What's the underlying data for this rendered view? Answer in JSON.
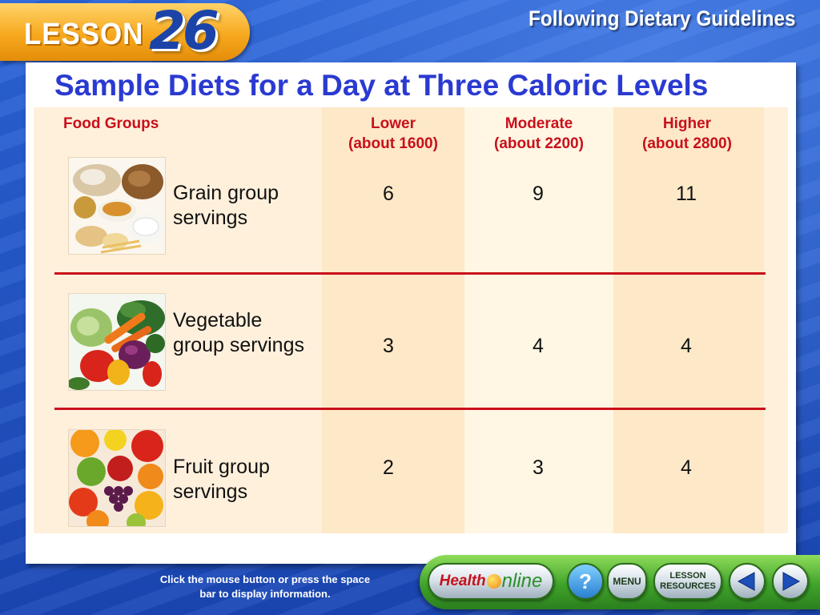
{
  "header": {
    "lesson_word": "LESSON",
    "lesson_number": "26",
    "chapter_title": "Following Dietary Guidelines"
  },
  "slide": {
    "title": "Sample Diets for a Day at Three Caloric Levels"
  },
  "table": {
    "columns": {
      "food_groups": "Food Groups",
      "lower_title": "Lower",
      "lower_sub": "(about 1600)",
      "moderate_title": "Moderate",
      "moderate_sub": "(about 2200)",
      "higher_title": "Higher",
      "higher_sub": "(about 2800)"
    },
    "rows": [
      {
        "label": "Grain group servings",
        "image_icon": "grain-foods-image",
        "lower": "6",
        "moderate": "9",
        "higher": "11"
      },
      {
        "label": "Vegetable group servings",
        "image_icon": "vegetables-image",
        "lower": "3",
        "moderate": "4",
        "higher": "4"
      },
      {
        "label": "Fruit group servings",
        "image_icon": "fruits-image",
        "lower": "2",
        "moderate": "3",
        "higher": "4"
      }
    ]
  },
  "colors": {
    "title_blue": "#2a3ad1",
    "header_red": "#c8101a",
    "lesson_orange": "#f7a91e",
    "background_blue": "#1f55c9",
    "nav_green": "#3fa32a"
  },
  "footer": {
    "instruction": "Click the mouse button or press the space bar to display information.",
    "health_label": "Health",
    "online_label": "nline",
    "help_label": "?",
    "menu_label": "MENU",
    "resources_label_1": "LESSON",
    "resources_label_2": "RESOURCES"
  }
}
